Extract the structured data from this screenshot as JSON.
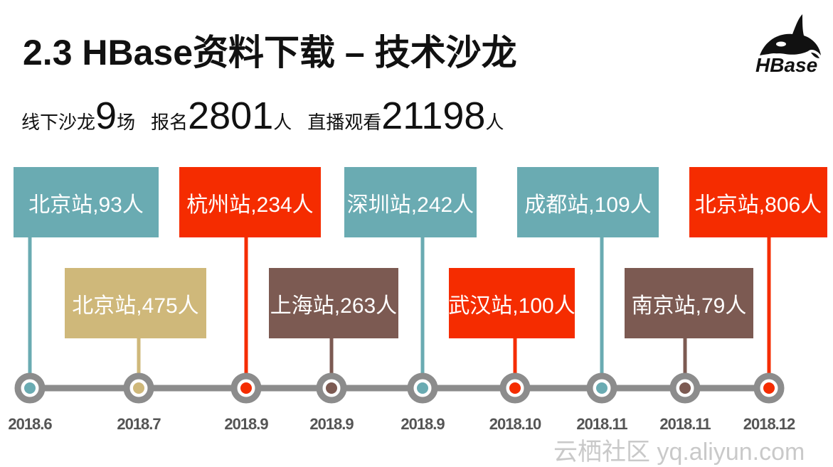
{
  "slide": {
    "title": "2.3 HBase资料下载 – 技术沙龙",
    "logo_text": "HBase",
    "watermark": "云栖社区 yq.aliyun.com"
  },
  "stats": {
    "salons_label": "线下沙龙",
    "salons_value": "9",
    "salons_unit": "场",
    "signup_label": "报名",
    "signup_value": "2801",
    "signup_unit": "人",
    "live_label": "直播观看",
    "live_value": "21198",
    "live_unit": "人"
  },
  "colors": {
    "teal": "#6aabb2",
    "red": "#f52c00",
    "tan": "#cfb87a",
    "brown": "#7c5a52",
    "track": "#8c8c8c"
  },
  "events": [
    {
      "label": "北京站,93人",
      "date": "2018.6",
      "color": "teal"
    },
    {
      "label": "北京站,475人",
      "date": "2018.7",
      "color": "tan"
    },
    {
      "label": "杭州站,234人",
      "date": "2018.9",
      "color": "red"
    },
    {
      "label": "上海站,263人",
      "date": "2018.9",
      "color": "brown"
    },
    {
      "label": "深圳站,242人",
      "date": "2018.9",
      "color": "teal"
    },
    {
      "label": "武汉站,100人",
      "date": "2018.10",
      "color": "red"
    },
    {
      "label": "成都站,109人",
      "date": "2018.11",
      "color": "teal"
    },
    {
      "label": "南京站,79人",
      "date": "2018.11",
      "color": "brown"
    },
    {
      "label": "北京站,806人",
      "date": "2018.12",
      "color": "red"
    }
  ]
}
